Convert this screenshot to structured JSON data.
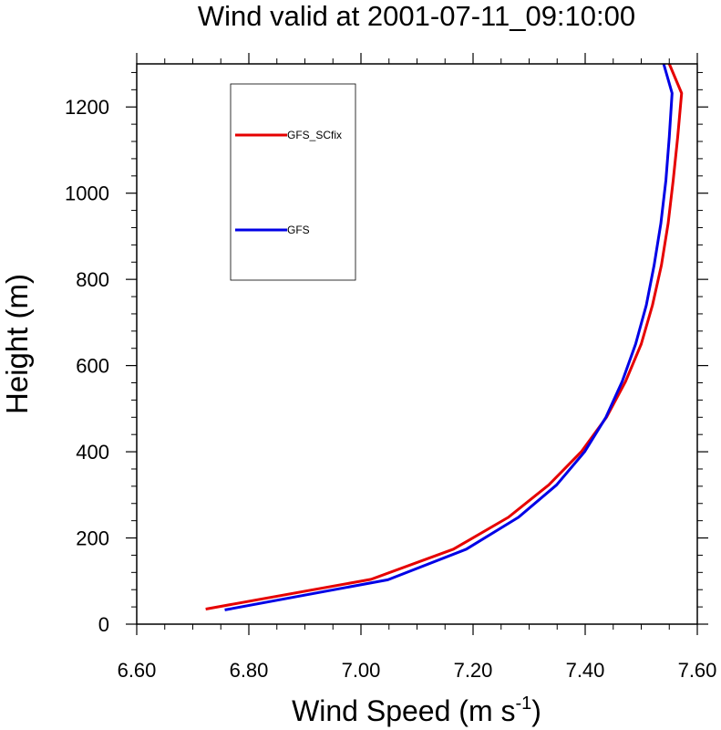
{
  "chart_data": {
    "type": "line",
    "title": "Wind valid at 2001-07-11_09:10:00",
    "xlabel": "Wind Speed (m s",
    "xlabel_superscript": "-1",
    "xlabel_suffix": ")",
    "ylabel": "Height (m)",
    "xlim": [
      6.6,
      7.6
    ],
    "ylim": [
      0,
      1300
    ],
    "x_ticks": [
      6.6,
      6.8,
      7.0,
      7.2,
      7.4,
      7.6
    ],
    "x_tick_labels": [
      "6.60",
      "6.80",
      "7.00",
      "7.20",
      "7.40",
      "7.60"
    ],
    "y_ticks": [
      0,
      200,
      400,
      600,
      800,
      1000,
      1200
    ],
    "y_tick_labels": [
      "0",
      "200",
      "400",
      "600",
      "800",
      "1000",
      "1200"
    ],
    "grid": false,
    "legend_position": "top-left",
    "series": [
      {
        "name": "GFS_SCfix",
        "color": "#e60000",
        "points": [
          [
            6.723,
            35
          ],
          [
            7.018,
            104
          ],
          [
            7.165,
            174
          ],
          [
            7.263,
            248
          ],
          [
            7.335,
            323
          ],
          [
            7.393,
            400
          ],
          [
            7.438,
            480
          ],
          [
            7.472,
            563
          ],
          [
            7.5,
            650
          ],
          [
            7.52,
            740
          ],
          [
            7.536,
            833
          ],
          [
            7.548,
            930
          ],
          [
            7.557,
            1030
          ],
          [
            7.565,
            1130
          ],
          [
            7.572,
            1232
          ],
          [
            7.55,
            1300
          ]
        ]
      },
      {
        "name": "GFS",
        "color": "#0000e6",
        "points": [
          [
            6.757,
            33
          ],
          [
            7.048,
            103
          ],
          [
            7.188,
            174
          ],
          [
            7.281,
            248
          ],
          [
            7.349,
            323
          ],
          [
            7.399,
            400
          ],
          [
            7.437,
            480
          ],
          [
            7.466,
            563
          ],
          [
            7.49,
            650
          ],
          [
            7.509,
            740
          ],
          [
            7.523,
            833
          ],
          [
            7.535,
            930
          ],
          [
            7.544,
            1030
          ],
          [
            7.55,
            1130
          ],
          [
            7.555,
            1232
          ],
          [
            7.54,
            1300
          ]
        ]
      }
    ]
  }
}
